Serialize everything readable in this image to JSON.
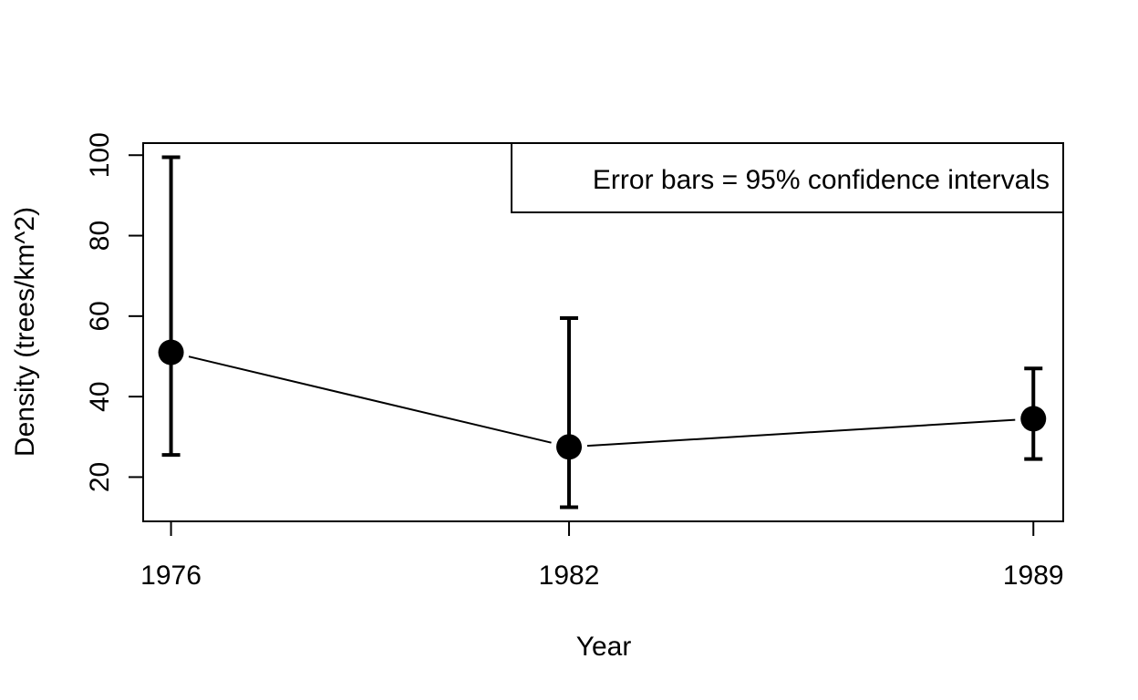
{
  "chart_data": {
    "type": "scatter",
    "title": "",
    "xlabel": "Year",
    "ylabel": "Density (trees/km^2)",
    "x": [
      "1976",
      "1982",
      "1989"
    ],
    "x_values": [
      1976,
      1982,
      1989
    ],
    "series": [
      {
        "values": [
          51,
          27.5,
          34.5
        ],
        "lower": [
          25.5,
          12.5,
          24.5
        ],
        "upper": [
          99.5,
          59.5,
          47
        ],
        "connected": true
      }
    ],
    "y_ticks": [
      20,
      40,
      60,
      80,
      100
    ],
    "ylim": [
      9,
      103
    ],
    "xlim": [
      1975.58,
      1989.45
    ],
    "grid": false,
    "legend_position": "top-right",
    "legend_text": "Error bars = 95% confidence intervals"
  },
  "colors": {
    "ink": "#000000",
    "background": "#ffffff"
  }
}
